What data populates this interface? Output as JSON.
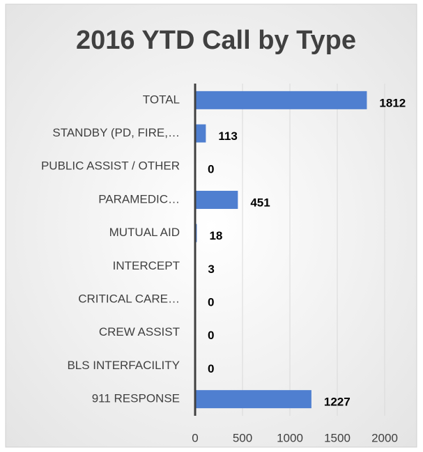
{
  "chart_data": {
    "type": "bar",
    "orientation": "horizontal",
    "title": "2016 YTD Call by Type",
    "categories": [
      "TOTAL",
      "STANDBY (PD, FIRE,…",
      "PUBLIC ASSIST / OTHER",
      "PARAMEDIC…",
      "MUTUAL AID",
      "INTERCEPT",
      "CRITICAL CARE…",
      "CREW ASSIST",
      "BLS INTERFACILITY",
      "911 RESPONSE"
    ],
    "values": [
      1812,
      113,
      0,
      451,
      18,
      3,
      0,
      0,
      0,
      1227
    ],
    "color": "#4f7fd0",
    "xlim": [
      0,
      2000
    ],
    "xticks": [
      0,
      500,
      1000,
      1500,
      2000
    ],
    "grid": true
  }
}
